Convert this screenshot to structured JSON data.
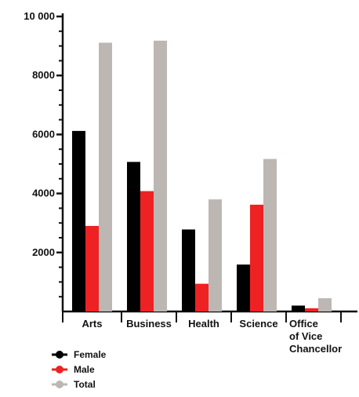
{
  "chart_data": {
    "type": "bar",
    "categories": [
      "Arts",
      "Business",
      "Health",
      "Science",
      "Office of Vice Chancellor"
    ],
    "category_lines": [
      [
        "Arts"
      ],
      [
        "Business"
      ],
      [
        "Health"
      ],
      [
        "Science"
      ],
      [
        "Office",
        "of Vice",
        "Chancellor"
      ]
    ],
    "series": [
      {
        "name": "Female",
        "values": [
          6120,
          5070,
          2780,
          1590,
          200
        ],
        "color": "#000000"
      },
      {
        "name": "Male",
        "values": [
          2900,
          4080,
          940,
          3620,
          110
        ],
        "color": "#ee2222"
      },
      {
        "name": "Total",
        "values": [
          9110,
          9180,
          3800,
          5170,
          450
        ],
        "color": "#bdb7b4"
      }
    ],
    "ylim": [
      0,
      10000
    ],
    "yticks": [
      2000,
      4000,
      6000,
      8000,
      10000
    ],
    "ytick_labels": [
      "2000",
      "4000",
      "6000",
      "8000",
      "10 000"
    ],
    "title": "",
    "xlabel": "",
    "ylabel": "",
    "grid": false,
    "legend_position": "bottom-left"
  }
}
